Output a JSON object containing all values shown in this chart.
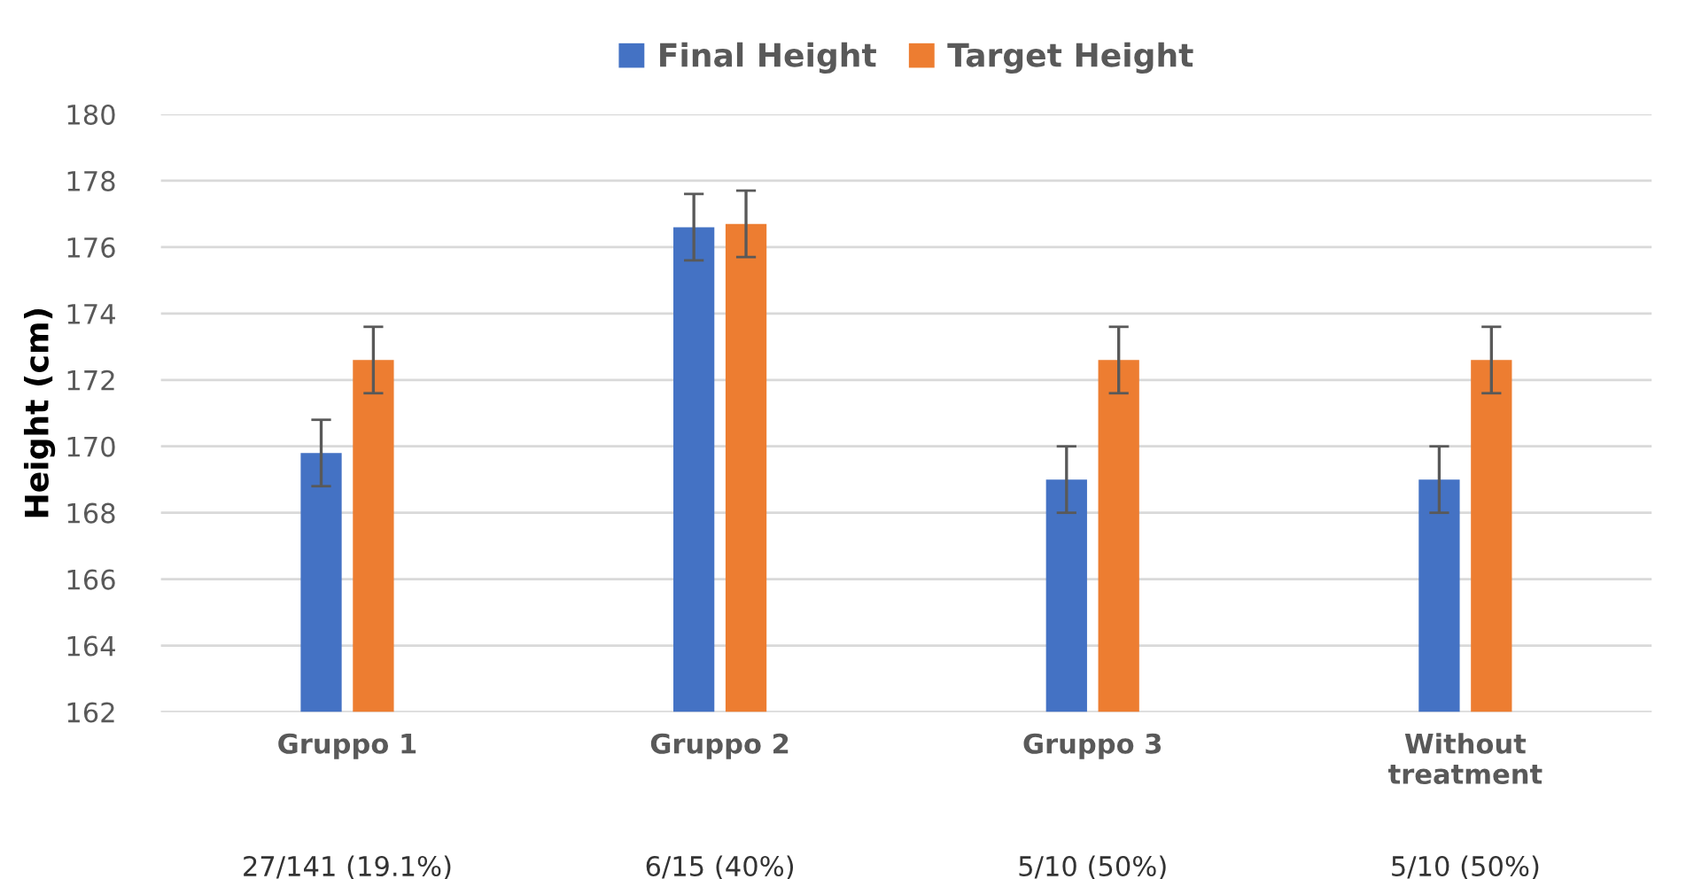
{
  "chart_data": {
    "type": "bar",
    "ylabel": "Height (cm)",
    "categories": [
      "Gruppo 1",
      "Gruppo 2",
      "Gruppo 3",
      "Without treatment"
    ],
    "series": [
      {
        "name": "Final Height",
        "color": "#4472c4",
        "values": [
          169.8,
          176.6,
          169.0,
          169.0
        ],
        "errors": [
          1.0,
          1.0,
          1.0,
          1.0
        ]
      },
      {
        "name": "Target Height",
        "color": "#ed7d31",
        "values": [
          172.6,
          176.7,
          172.6,
          172.6
        ],
        "errors": [
          1.0,
          1.0,
          1.0,
          1.0
        ]
      }
    ],
    "annotations": [
      "27/141 (19.1%)",
      "6/15 (40%)",
      "5/10 (50%)",
      "5/10 (50%)"
    ],
    "ylim": [
      162,
      180
    ],
    "yticks": [
      162,
      164,
      166,
      168,
      170,
      172,
      174,
      176,
      178,
      180
    ],
    "grid": "y",
    "legend": "top"
  }
}
